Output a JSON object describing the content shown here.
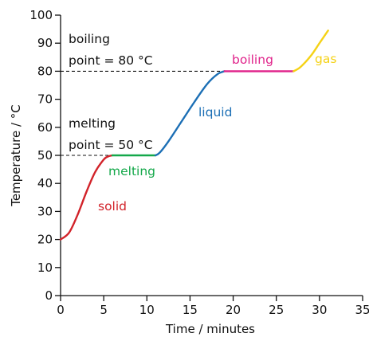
{
  "chart_data": {
    "type": "line",
    "xlabel": "Time / minutes",
    "ylabel": "Temperature / °C",
    "xlim": [
      0,
      35
    ],
    "ylim": [
      0,
      100
    ],
    "x_ticks": [
      0,
      5,
      10,
      15,
      20,
      25,
      30,
      35
    ],
    "y_ticks": [
      0,
      10,
      20,
      30,
      40,
      50,
      60,
      70,
      80,
      90,
      100
    ],
    "grid": false,
    "series": [
      {
        "name": "solid",
        "color": "#d2232a",
        "x": [
          0,
          1,
          2,
          3,
          4,
          5,
          5.5,
          6
        ],
        "y": [
          20,
          22.5,
          29,
          37,
          44,
          48.5,
          49.6,
          50
        ]
      },
      {
        "name": "melting",
        "color": "#14a84a",
        "x": [
          6,
          11
        ],
        "y": [
          50,
          50
        ]
      },
      {
        "name": "liquid",
        "color": "#1c6fb5",
        "x": [
          11,
          11.5,
          12.5,
          14,
          15.5,
          17,
          18.2,
          19
        ],
        "y": [
          50,
          51,
          55,
          62,
          69,
          75.5,
          79,
          80
        ]
      },
      {
        "name": "boiling",
        "color": "#e0228a",
        "x": [
          19,
          27
        ],
        "y": [
          80,
          80
        ]
      },
      {
        "name": "gas",
        "color": "#f5d216",
        "x": [
          27,
          27.8,
          29,
          30,
          31
        ],
        "y": [
          80,
          81.5,
          85.5,
          90,
          94.5
        ]
      }
    ],
    "reference_lines": [
      {
        "y": 80,
        "x_from": 0,
        "x_to": 19,
        "style": "dashed"
      },
      {
        "y": 50,
        "x_from": 0,
        "x_to": 6,
        "style": "dashed"
      }
    ],
    "annotations": [
      {
        "text_lines": [
          "boiling",
          "point = 80 °C"
        ]
      },
      {
        "text_lines": [
          "melting",
          "point = 50 °C"
        ]
      }
    ]
  }
}
